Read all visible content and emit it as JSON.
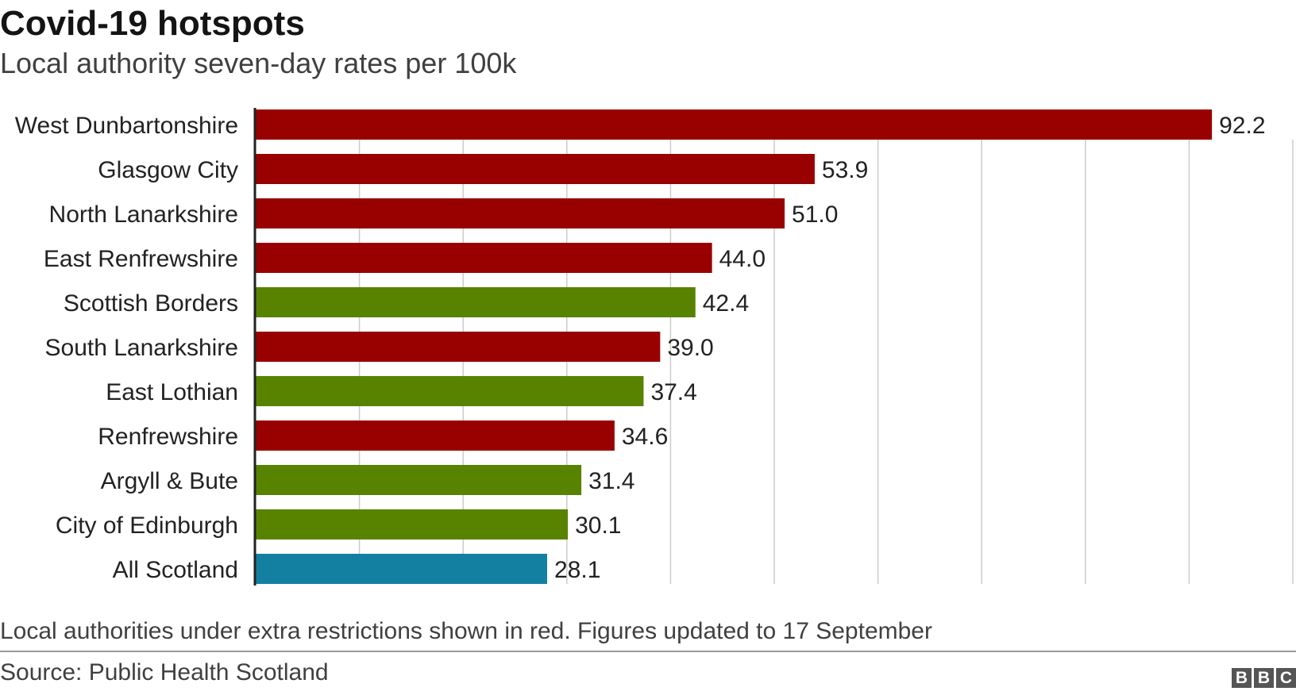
{
  "header": {
    "title": "Covid-19 hotspots",
    "subtitle": "Local authority seven-day rates per 100k"
  },
  "footer": {
    "note": "Local authorities under extra restrictions shown in red. Figures updated to 17 September",
    "source": "Source: Public Health Scotland",
    "logo_letters": [
      "B",
      "B",
      "C"
    ]
  },
  "colors": {
    "restricted": "#990000",
    "other": "#588300",
    "scotland": "#1380a1",
    "grid": "#cccccc",
    "axis": "#222222"
  },
  "chart_data": {
    "type": "bar",
    "orientation": "horizontal",
    "title": "Covid-19 hotspots",
    "subtitle": "Local authority seven-day rates per 100k",
    "categories": [
      "West Dunbartonshire",
      "Glasgow City",
      "North Lanarkshire",
      "East Renfrewshire",
      "Scottish Borders",
      "South Lanarkshire",
      "East Lothian",
      "Renfrewshire",
      "Argyll & Bute",
      "City of Edinburgh",
      "All Scotland"
    ],
    "values": [
      92.2,
      53.9,
      51.0,
      44.0,
      42.4,
      39.0,
      37.4,
      34.6,
      31.4,
      30.1,
      28.1
    ],
    "value_labels": [
      "92.2",
      "53.9",
      "51.0",
      "44.0",
      "42.4",
      "39.0",
      "37.4",
      "34.6",
      "31.4",
      "30.1",
      "28.1"
    ],
    "groups": [
      "restricted",
      "restricted",
      "restricted",
      "restricted",
      "other",
      "restricted",
      "other",
      "restricted",
      "other",
      "other",
      "scotland"
    ],
    "xlim": [
      0,
      100
    ],
    "grid_step": 10,
    "grid": true,
    "x_tick_labels_shown": false,
    "legend": "none"
  }
}
